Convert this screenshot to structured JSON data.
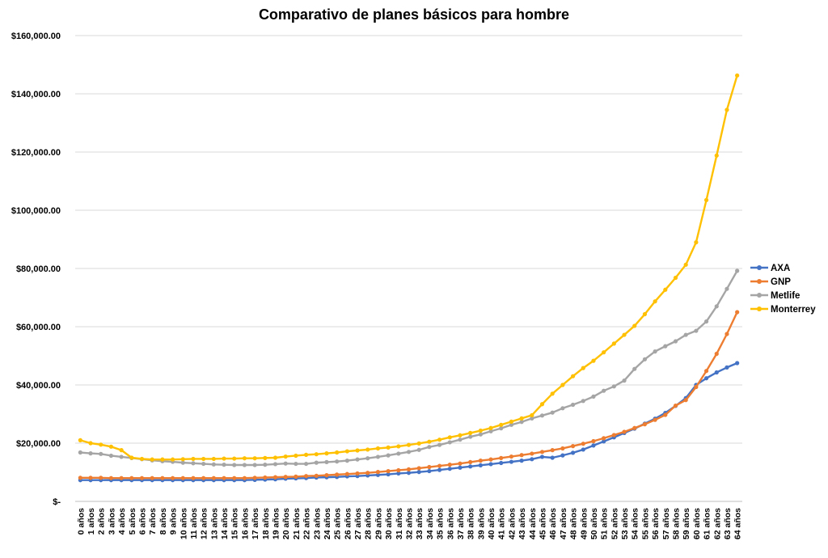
{
  "chart_data": {
    "type": "line",
    "title": "Comparativo de planes básicos para hombre",
    "xlabel": "",
    "ylabel": "",
    "ylim": [
      0,
      160000
    ],
    "yticks": [
      0,
      20000,
      40000,
      60000,
      80000,
      100000,
      120000,
      140000,
      160000
    ],
    "ytick_labels": [
      "$-",
      "$20,000.00",
      "$40,000.00",
      "$60,000.00",
      "$80,000.00",
      "$100,000.00",
      "$120,000.00",
      "$140,000.00",
      "$160,000.00"
    ],
    "grid": true,
    "legend_position": "right",
    "categories": [
      "0 años",
      "1 años",
      "2 años",
      "3 años",
      "4 años",
      "5 años",
      "6 años",
      "7 años",
      "8 años",
      "9 años",
      "10 años",
      "11 años",
      "12 años",
      "13 años",
      "14 años",
      "15 años",
      "16 años",
      "17 años",
      "18 años",
      "19 años",
      "20 años",
      "21 años",
      "22 años",
      "23 años",
      "24 años",
      "25 años",
      "26 años",
      "27 años",
      "28 años",
      "29 años",
      "30 años",
      "31 años",
      "32 años",
      "33 años",
      "34 años",
      "35 años",
      "36 años",
      "37 años",
      "38 años",
      "39 años",
      "40 años",
      "41 años",
      "42 años",
      "43 años",
      "44 años",
      "45 años",
      "46 años",
      "47 años",
      "48 años",
      "49 años",
      "50 años",
      "51 años",
      "52 años",
      "53 años",
      "54 años",
      "55 años",
      "56 años",
      "57 años",
      "58 años",
      "59 años",
      "60 años",
      "61 años",
      "62 años",
      "63 años",
      "64 años"
    ],
    "series": [
      {
        "name": "AXA",
        "color": "#4472C4",
        "values": [
          7300,
          7300,
          7300,
          7300,
          7300,
          7300,
          7300,
          7300,
          7300,
          7300,
          7300,
          7300,
          7300,
          7300,
          7300,
          7300,
          7300,
          7400,
          7500,
          7600,
          7800,
          7900,
          8000,
          8200,
          8300,
          8400,
          8600,
          8700,
          8900,
          9100,
          9300,
          9600,
          9800,
          10100,
          10400,
          10800,
          11200,
          11600,
          12000,
          12400,
          12800,
          13200,
          13600,
          14000,
          14500,
          15300,
          15000,
          15800,
          16700,
          17800,
          19200,
          20600,
          22000,
          23500,
          25000,
          26700,
          28400,
          30400,
          32800,
          35500,
          40000,
          42300,
          44300,
          46000,
          47500
        ]
      },
      {
        "name": "GNP",
        "color": "#ED7D31",
        "values": [
          8100,
          8100,
          8100,
          8000,
          8000,
          8000,
          8000,
          8000,
          8000,
          8000,
          8000,
          8000,
          8000,
          8000,
          8000,
          8000,
          8000,
          8100,
          8200,
          8300,
          8400,
          8500,
          8700,
          8800,
          9000,
          9200,
          9400,
          9600,
          9800,
          10100,
          10400,
          10700,
          11000,
          11400,
          11800,
          12200,
          12600,
          13000,
          13500,
          14000,
          14400,
          14900,
          15400,
          15900,
          16400,
          17000,
          17600,
          18200,
          19000,
          19800,
          20700,
          21700,
          22800,
          23900,
          25200,
          26500,
          28000,
          29700,
          32900,
          34800,
          39300,
          44800,
          50700,
          57500,
          65000
        ]
      },
      {
        "name": "Metlife",
        "color": "#A5A5A5",
        "values": [
          16800,
          16500,
          16300,
          15700,
          15300,
          14900,
          14500,
          14100,
          13800,
          13600,
          13300,
          13100,
          12900,
          12700,
          12600,
          12500,
          12500,
          12500,
          12600,
          12800,
          13000,
          12900,
          12900,
          13300,
          13500,
          13700,
          14000,
          14400,
          14800,
          15300,
          15800,
          16400,
          17000,
          17700,
          18700,
          19400,
          20300,
          21200,
          22200,
          23000,
          24100,
          25100,
          26300,
          27300,
          28500,
          29500,
          30500,
          32000,
          33200,
          34500,
          36000,
          38000,
          39500,
          41500,
          45500,
          48800,
          51500,
          53300,
          55000,
          57200,
          58600,
          61800,
          67000,
          73000,
          79200
        ]
      },
      {
        "name": "Monterrey",
        "color": "#FFC000",
        "values": [
          21000,
          20000,
          19500,
          18800,
          17600,
          15000,
          14600,
          14400,
          14400,
          14400,
          14500,
          14600,
          14600,
          14600,
          14700,
          14700,
          14800,
          14800,
          14900,
          15000,
          15400,
          15700,
          16000,
          16200,
          16500,
          16800,
          17200,
          17500,
          17800,
          18200,
          18500,
          18900,
          19400,
          19900,
          20500,
          21200,
          22000,
          22700,
          23500,
          24300,
          25200,
          26300,
          27400,
          28500,
          29600,
          33400,
          37000,
          40000,
          43000,
          45800,
          48300,
          51200,
          54200,
          57200,
          60300,
          64300,
          68700,
          72700,
          76800,
          81300,
          89000,
          103500,
          118800,
          134500,
          146300
        ]
      }
    ]
  }
}
